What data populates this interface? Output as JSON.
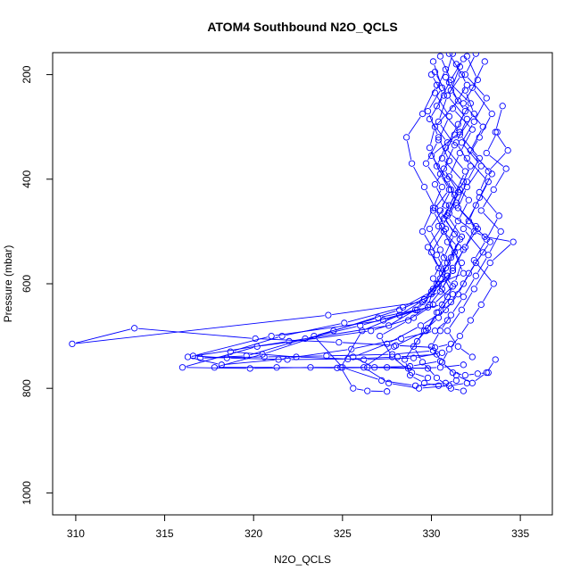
{
  "chart_data": {
    "type": "line",
    "title": "ATOM4 Southbound N2O_QCLS",
    "xlabel": "N2O_QCLS",
    "ylabel": "Pressure (mbar)",
    "xlim": [
      308.7,
      336.8
    ],
    "ylim": [
      1042,
      158
    ],
    "y_reversed": true,
    "x_ticks": [
      310,
      315,
      320,
      325,
      330,
      335
    ],
    "y_ticks": [
      200,
      400,
      600,
      800,
      1000
    ],
    "grid": false,
    "legend": "none",
    "marker": "open-circle",
    "series_color": "#0000ff",
    "series": [
      {
        "x": [
          331.2,
          330.8,
          331.5,
          330.2,
          329.9,
          330.5,
          331.0,
          330.1,
          330.7,
          331.3,
          331.8,
          330.4,
          329.6,
          329.1,
          327.6,
          322.0,
          316.3,
          318.2,
          321.4,
          325.5,
          328.3,
          330.2,
          330.9
        ],
        "y": [
          160,
          205,
          250,
          300,
          340,
          390,
          420,
          460,
          500,
          540,
          580,
          600,
          630,
          650,
          680,
          710,
          740,
          755,
          745,
          725,
          705,
          690,
          670
        ]
      },
      {
        "x": [
          330.5,
          331.1,
          330.3,
          331.6,
          330.0,
          330.9,
          331.4,
          330.6,
          329.8,
          330.4,
          331.2,
          330.1,
          329.0,
          326.6,
          320.2,
          316.0,
          319.8,
          323.2,
          326.4,
          328.8,
          330.5
        ],
        "y": [
          165,
          210,
          260,
          310,
          355,
          400,
          445,
          490,
          530,
          570,
          605,
          640,
          665,
          690,
          720,
          760,
          762,
          760,
          760,
          758,
          748
        ]
      },
      {
        "x": [
          331.8,
          331.0,
          332.2,
          331.5,
          330.8,
          331.9,
          331.3,
          330.7,
          331.6,
          330.9,
          330.3,
          329.5,
          324.2,
          309.8,
          313.3,
          320.1,
          324.8,
          328.0,
          330.2,
          331.1
        ],
        "y": [
          170,
          215,
          255,
          295,
          340,
          385,
          430,
          475,
          515,
          560,
          600,
          635,
          660,
          715,
          685,
          705,
          712,
          718,
          722,
          715
        ]
      },
      {
        "x": [
          330.1,
          330.6,
          329.8,
          330.4,
          331.0,
          330.2,
          330.8,
          329.9,
          330.5,
          331.2,
          330.0,
          328.4,
          325.1,
          321.6,
          318.7,
          322.4,
          326.2,
          329.0,
          330.6
        ],
        "y": [
          175,
          225,
          270,
          320,
          365,
          410,
          450,
          495,
          535,
          575,
          615,
          645,
          675,
          700,
          730,
          740,
          745,
          742,
          732
        ]
      },
      {
        "x": [
          332.5,
          331.9,
          333.1,
          332.4,
          331.7,
          332.8,
          332.0,
          331.5,
          332.6,
          331.8,
          331.2,
          330.5,
          328.2,
          324.5,
          320.5,
          317.8,
          321.3,
          324.7,
          327.5,
          329.8
        ],
        "y": [
          160,
          200,
          245,
          290,
          330,
          375,
          415,
          455,
          495,
          535,
          575,
          615,
          650,
          690,
          735,
          760,
          760,
          761,
          760,
          762
        ]
      },
      {
        "x": [
          331.4,
          332.0,
          331.2,
          332.3,
          331.6,
          331.0,
          332.1,
          331.5,
          330.9,
          331.7,
          331.3,
          330.6,
          327.0,
          323.4,
          325.0,
          327.2,
          329.1,
          330.8,
          331.4
        ],
        "y": [
          180,
          220,
          265,
          305,
          350,
          395,
          440,
          480,
          520,
          560,
          600,
          640,
          665,
          700,
          760,
          785,
          795,
          790,
          785
        ]
      },
      {
        "x": [
          330.8,
          330.2,
          331.0,
          330.4,
          329.7,
          330.6,
          330.1,
          329.5,
          330.3,
          330.9,
          330.0,
          329.2,
          326.0,
          322.9,
          319.6,
          317.0,
          320.6,
          324.1,
          327.8,
          330.1
        ],
        "y": [
          190,
          235,
          280,
          325,
          370,
          415,
          455,
          500,
          545,
          585,
          620,
          650,
          680,
          705,
          738,
          742,
          740,
          738,
          735,
          728
        ]
      },
      {
        "x": [
          333.0,
          332.3,
          333.4,
          332.7,
          332.0,
          333.2,
          332.5,
          331.8,
          332.9,
          332.1,
          331.5,
          330.8,
          329.4,
          327.5,
          325.6,
          326.8,
          328.7,
          330.5,
          331.8
        ],
        "y": [
          175,
          225,
          275,
          320,
          360,
          405,
          450,
          495,
          540,
          580,
          620,
          650,
          680,
          715,
          740,
          760,
          762,
          760,
          755
        ]
      },
      {
        "x": [
          330.0,
          330.7,
          329.9,
          330.9,
          330.3,
          331.1,
          330.5,
          331.3,
          330.7,
          330.1,
          330.9,
          330.3,
          329.7,
          327.9,
          326.2,
          327.6,
          329.3,
          331.0,
          332.0
        ],
        "y": [
          200,
          240,
          285,
          330,
          375,
          420,
          460,
          505,
          550,
          590,
          625,
          655,
          690,
          720,
          760,
          790,
          800,
          795,
          790
        ]
      },
      {
        "x": [
          331.6,
          331.1,
          331.9,
          331.3,
          330.6,
          331.8,
          331.0,
          330.4,
          331.5,
          330.8,
          330.1,
          329.8,
          327.3,
          321.0,
          316.6,
          318.5,
          321.9,
          325.3,
          328.1,
          330.3
        ],
        "y": [
          185,
          230,
          270,
          315,
          360,
          405,
          450,
          490,
          530,
          570,
          610,
          645,
          670,
          700,
          738,
          742,
          745,
          744,
          740,
          735
        ]
      },
      {
        "x": [
          334.0,
          333.6,
          334.3,
          333.2,
          332.7,
          333.8,
          333.1,
          332.4,
          333.5,
          332.8,
          332.2,
          331.6,
          331.0,
          330.6,
          331.2,
          331.9,
          332.6,
          333.2
        ],
        "y": [
          260,
          310,
          345,
          385,
          425,
          470,
          515,
          555,
          600,
          640,
          670,
          700,
          725,
          750,
          770,
          775,
          772,
          770
        ]
      },
      {
        "x": [
          330.3,
          329.5,
          328.6,
          328.9,
          329.6,
          330.2,
          330.8,
          330.0,
          330.6,
          331.2,
          330.4,
          329.8,
          329.2,
          328.5,
          328.8,
          329.6,
          330.4
        ],
        "y": [
          220,
          275,
          320,
          370,
          415,
          455,
          495,
          540,
          580,
          620,
          655,
          685,
          710,
          745,
          775,
          790,
          795
        ]
      },
      {
        "x": [
          332.0,
          332.6,
          331.8,
          332.9,
          332.2,
          333.4,
          332.7,
          332.1,
          333.3,
          332.5,
          331.8,
          331.1,
          330.4,
          329.6,
          329.0,
          329.5,
          330.3,
          331.1,
          331.8
        ],
        "y": [
          165,
          210,
          255,
          300,
          345,
          390,
          435,
          480,
          520,
          560,
          600,
          635,
          665,
          690,
          720,
          750,
          780,
          800,
          805
        ]
      },
      {
        "x": [
          331.0,
          331.7,
          330.9,
          332.0,
          331.4,
          332.2,
          331.6,
          331.0,
          332.4,
          333.0,
          334.6,
          333.3,
          332.4,
          331.7,
          330.9,
          331.5,
          332.3
        ],
        "y": [
          160,
          200,
          240,
          285,
          330,
          375,
          420,
          465,
          500,
          510,
          520,
          560,
          610,
          650,
          690,
          720,
          740
        ]
      },
      {
        "x": [
          330.2,
          330.9,
          330.4,
          331.3,
          330.7,
          331.5,
          330.9,
          331.7,
          331.1,
          330.5,
          329.6,
          328.2,
          326.1,
          324.9,
          325.6,
          326.4,
          327.5
        ],
        "y": [
          195,
          240,
          290,
          335,
          380,
          425,
          470,
          510,
          550,
          590,
          630,
          660,
          690,
          760,
          800,
          805,
          806
        ]
      },
      {
        "x": [
          331.9,
          332.4,
          331.6,
          332.7,
          332.0,
          331.4,
          332.5,
          331.9,
          331.2,
          330.6,
          329.9,
          328.7,
          327.1,
          327.8,
          328.9,
          329.8
        ],
        "y": [
          230,
          275,
          315,
          360,
          405,
          450,
          490,
          530,
          570,
          610,
          640,
          670,
          700,
          740,
          770,
          780
        ]
      },
      {
        "x": [
          333.7,
          333.1,
          334.2,
          333.5,
          332.8,
          333.9,
          333.2,
          332.5,
          331.8,
          331.1,
          330.5,
          330.0,
          330.6,
          331.4,
          332.3,
          333.1,
          333.6
        ],
        "y": [
          310,
          350,
          380,
          420,
          460,
          500,
          545,
          585,
          625,
          660,
          690,
          720,
          750,
          775,
          790,
          770,
          745
        ]
      }
    ]
  }
}
